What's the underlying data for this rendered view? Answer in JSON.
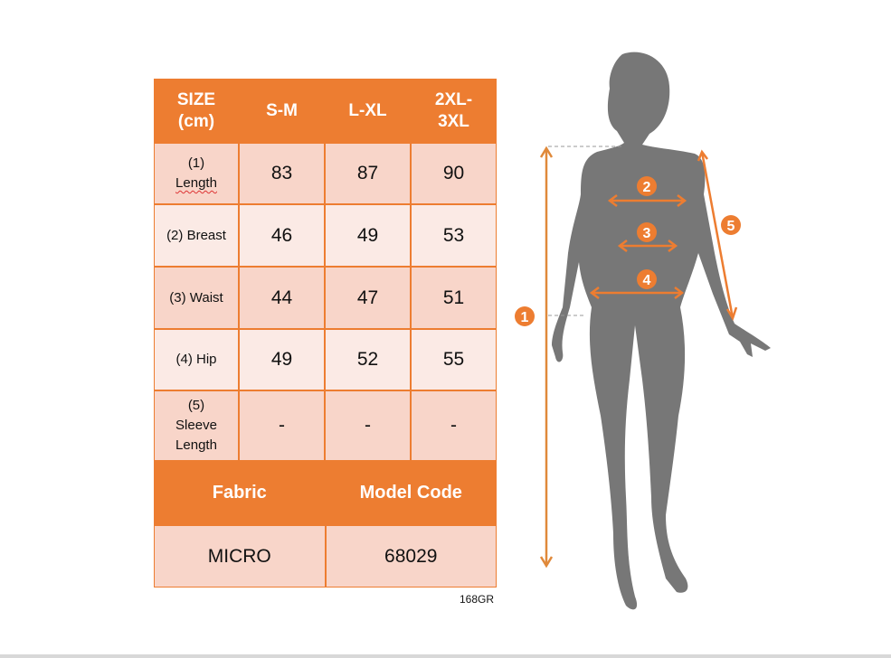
{
  "table": {
    "headers": [
      "SIZE (cm)",
      "S-M",
      "L-XL",
      "2XL-3XL"
    ],
    "header_lines": [
      [
        "SIZE",
        "(cm)"
      ],
      [
        "S-M"
      ],
      [
        "L-XL"
      ],
      [
        "2XL-",
        "3XL"
      ]
    ],
    "rows": [
      {
        "label_lines": [
          "(1)",
          "Length"
        ],
        "values": [
          "83",
          "87",
          "90"
        ]
      },
      {
        "label_lines": [
          "(2) Breast"
        ],
        "values": [
          "46",
          "49",
          "53"
        ]
      },
      {
        "label_lines": [
          "(3) Waist"
        ],
        "values": [
          "44",
          "47",
          "51"
        ]
      },
      {
        "label_lines": [
          "(4) Hip"
        ],
        "values": [
          "49",
          "52",
          "55"
        ]
      },
      {
        "label_lines": [
          "(5)",
          "Sleeve",
          "Length"
        ],
        "values": [
          "-",
          "-",
          "-"
        ]
      }
    ],
    "fabric_label": "Fabric",
    "model_code_label": "Model Code",
    "fabric_value": "MICRO",
    "model_code_value": "68029"
  },
  "product_code": "168GR",
  "figure": {
    "markers": [
      "1",
      "2",
      "3",
      "4",
      "5"
    ]
  },
  "colors": {
    "accent": "#ED7D31",
    "row_dark": "#F8D5C9",
    "row_light": "#FBEAE5",
    "silhouette": "#777777"
  }
}
